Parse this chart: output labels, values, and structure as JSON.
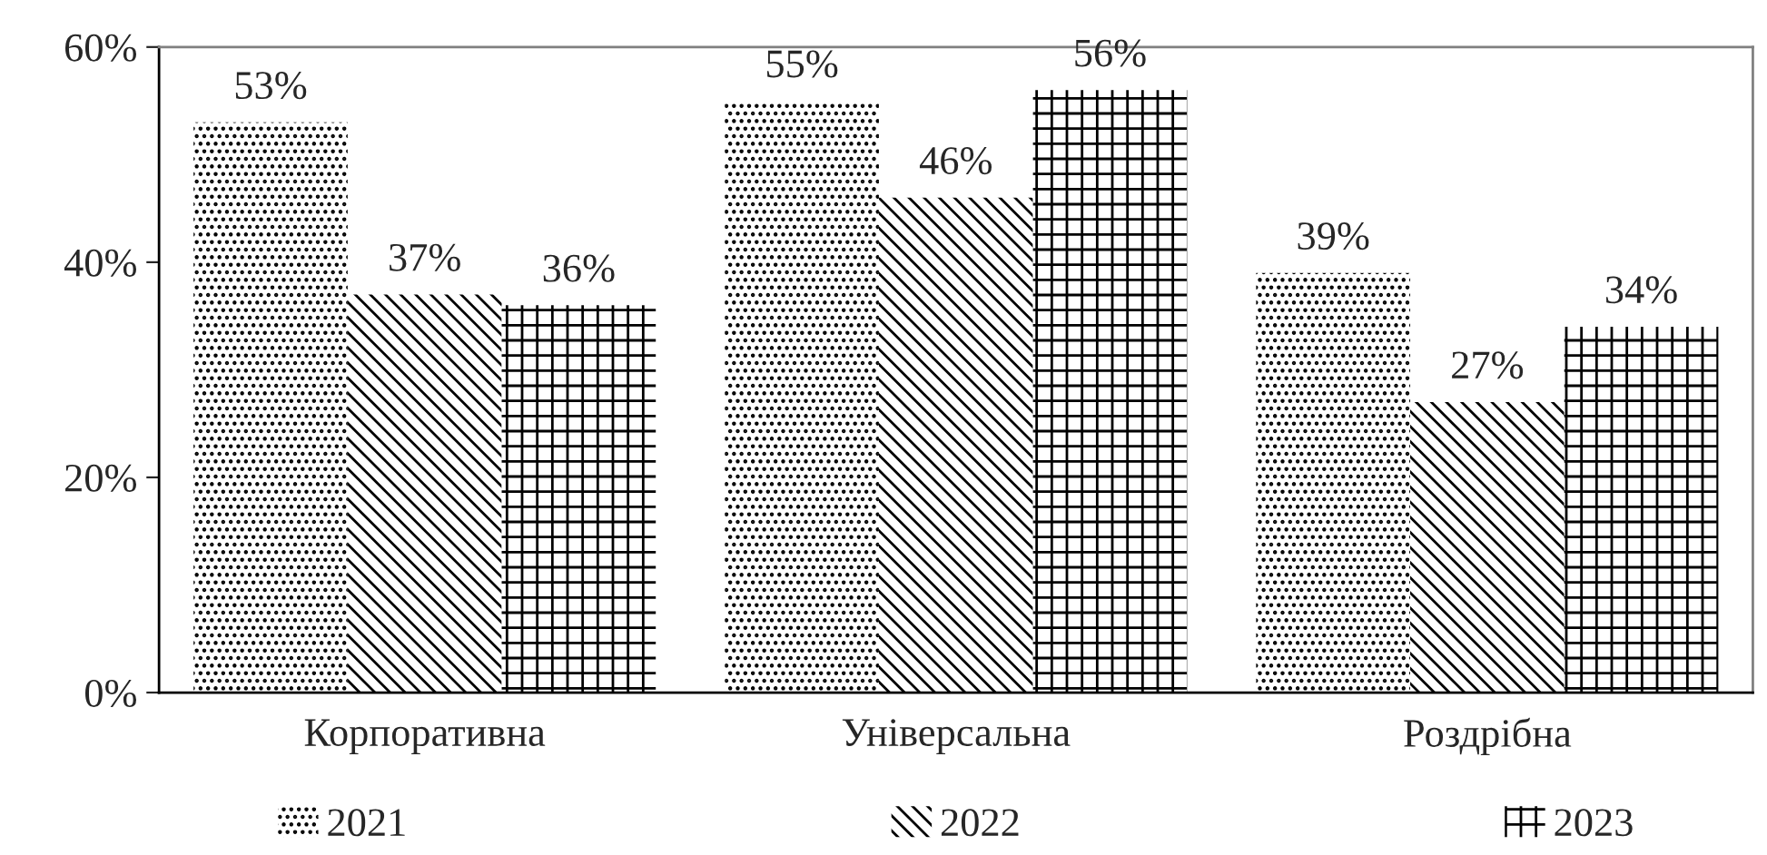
{
  "chart_data": {
    "type": "bar",
    "categories": [
      "Корпоративна",
      "Універсальна",
      "Роздрібна"
    ],
    "series": [
      {
        "name": "2021",
        "color": "#000000",
        "values": [
          53,
          55,
          39
        ],
        "value_labels": [
          "53%",
          "55%",
          "39%"
        ]
      },
      {
        "name": "2022",
        "color": "#000000",
        "values": [
          37,
          46,
          27
        ],
        "value_labels": [
          "37%",
          "46%",
          "27%"
        ]
      },
      {
        "name": "2023",
        "color": "#000000",
        "values": [
          36,
          56,
          34
        ],
        "value_labels": [
          "36%",
          "56%",
          "34%"
        ]
      }
    ],
    "ylim": [
      0,
      60
    ],
    "yticks": [
      {
        "value": 0,
        "label": "0%"
      },
      {
        "value": 20,
        "label": "20%"
      },
      {
        "value": 40,
        "label": "40%"
      },
      {
        "value": 60,
        "label": "60%"
      }
    ],
    "grid": false,
    "legend": "bottom"
  }
}
